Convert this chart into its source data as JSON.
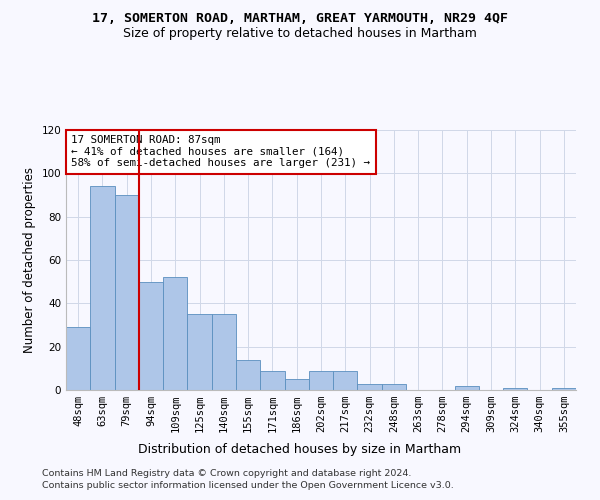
{
  "title": "17, SOMERTON ROAD, MARTHAM, GREAT YARMOUTH, NR29 4QF",
  "subtitle": "Size of property relative to detached houses in Martham",
  "xlabel": "Distribution of detached houses by size in Martham",
  "ylabel": "Number of detached properties",
  "categories": [
    "48sqm",
    "63sqm",
    "79sqm",
    "94sqm",
    "109sqm",
    "125sqm",
    "140sqm",
    "155sqm",
    "171sqm",
    "186sqm",
    "202sqm",
    "217sqm",
    "232sqm",
    "248sqm",
    "263sqm",
    "278sqm",
    "294sqm",
    "309sqm",
    "324sqm",
    "340sqm",
    "355sqm"
  ],
  "values": [
    29,
    94,
    90,
    50,
    52,
    35,
    35,
    14,
    9,
    5,
    9,
    9,
    3,
    3,
    0,
    0,
    2,
    0,
    1,
    0,
    1
  ],
  "bar_color": "#aec6e8",
  "bar_edge_color": "#5a8fbf",
  "vline_x": 2.5,
  "vline_color": "#cc0000",
  "annotation_text": "17 SOMERTON ROAD: 87sqm\n← 41% of detached houses are smaller (164)\n58% of semi-detached houses are larger (231) →",
  "annotation_box_color": "#ffffff",
  "annotation_box_edge_color": "#cc0000",
  "ylim": [
    0,
    120
  ],
  "yticks": [
    0,
    20,
    40,
    60,
    80,
    100,
    120
  ],
  "grid_color": "#d0d8e8",
  "background_color": "#f8f8ff",
  "footer_line1": "Contains HM Land Registry data © Crown copyright and database right 2024.",
  "footer_line2": "Contains public sector information licensed under the Open Government Licence v3.0.",
  "title_fontsize": 9.5,
  "subtitle_fontsize": 9,
  "tick_fontsize": 7.5,
  "ylabel_fontsize": 8.5,
  "xlabel_fontsize": 9,
  "footer_fontsize": 6.8,
  "annotation_fontsize": 7.8
}
